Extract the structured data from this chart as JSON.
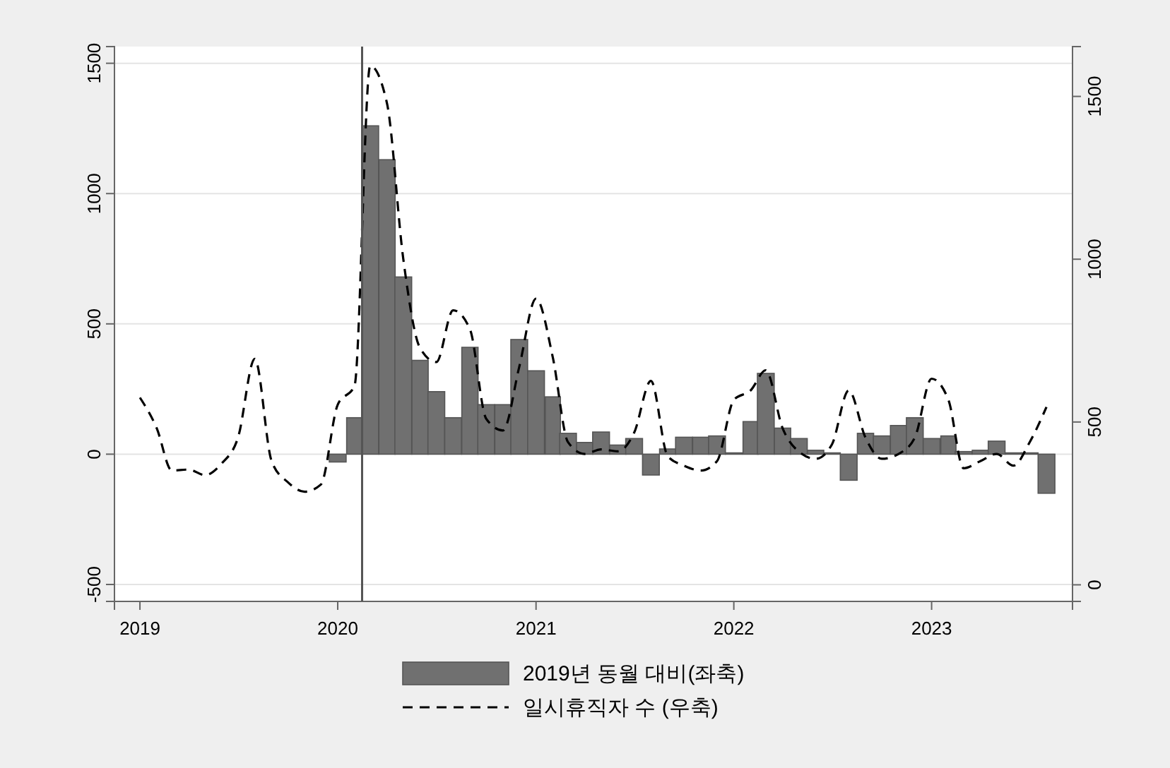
{
  "chart_data": {
    "type": "bar",
    "xlim": [
      "2018-11-15",
      "2023-09-18"
    ],
    "xticks": [
      "2019",
      "2020",
      "2021",
      "2022",
      "2023"
    ],
    "ylim": [
      -565,
      1564
    ],
    "yticks": [
      -500,
      0,
      500,
      1000,
      1500
    ],
    "y2lim": [
      -51,
      1653
    ],
    "y2ticks": [
      0,
      500,
      1000,
      1500
    ],
    "grid": "y",
    "legend": "bottom",
    "ref_lines": [
      {
        "axis": "x",
        "value": "2020-02-15",
        "color": "#555555"
      }
    ],
    "series": [
      {
        "name": "2019년 동월 대비(좌축)",
        "color": "#707070",
        "x": [
          "2020-01",
          "2020-02",
          "2020-03",
          "2020-04",
          "2020-05",
          "2020-06",
          "2020-07",
          "2020-08",
          "2020-09",
          "2020-10",
          "2020-11",
          "2020-12",
          "2021-01",
          "2021-02",
          "2021-03",
          "2021-04",
          "2021-05",
          "2021-06",
          "2021-07",
          "2021-08",
          "2021-09",
          "2021-10",
          "2021-11",
          "2021-12",
          "2022-01",
          "2022-02",
          "2022-03",
          "2022-04",
          "2022-05",
          "2022-06",
          "2022-07",
          "2022-08",
          "2022-09",
          "2022-10",
          "2022-11",
          "2022-12",
          "2023-01",
          "2023-02",
          "2023-03",
          "2023-04",
          "2023-05",
          "2023-06",
          "2023-07",
          "2023-08"
        ],
        "values": [
          -30,
          140,
          1260,
          1130,
          680,
          360,
          240,
          140,
          410,
          190,
          190,
          440,
          320,
          220,
          80,
          45,
          85,
          35,
          60,
          -80,
          20,
          65,
          65,
          70,
          5,
          125,
          310,
          100,
          60,
          15,
          5,
          -100,
          80,
          70,
          110,
          140,
          60,
          70,
          10,
          15,
          50,
          5,
          5,
          -150
        ]
      },
      {
        "name": "일시휴직자 수 (우축)",
        "type": "line",
        "axis": "y2",
        "line_style": "dashed",
        "color": "#000000",
        "x": [
          "2019-01",
          "2019-02",
          "2019-03",
          "2019-04",
          "2019-05",
          "2019-06",
          "2019-07",
          "2019-08",
          "2019-09",
          "2019-10",
          "2019-11",
          "2019-12",
          "2020-01",
          "2020-02",
          "2020-03",
          "2020-04",
          "2020-05",
          "2020-06",
          "2020-07",
          "2020-08",
          "2020-09",
          "2020-10",
          "2020-11",
          "2020-12",
          "2021-01",
          "2021-02",
          "2021-03",
          "2021-04",
          "2021-05",
          "2021-06",
          "2021-07",
          "2021-08",
          "2021-09",
          "2021-10",
          "2021-11",
          "2021-12",
          "2022-01",
          "2022-02",
          "2022-03",
          "2022-04",
          "2022-05",
          "2022-06",
          "2022-07",
          "2022-08",
          "2022-09",
          "2022-10",
          "2022-11",
          "2022-12",
          "2023-01",
          "2023-02",
          "2023-03",
          "2023-04",
          "2023-05",
          "2023-06",
          "2023-07",
          "2023-08"
        ],
        "values": [
          575,
          481,
          351,
          354,
          337,
          373,
          452,
          694,
          380,
          315,
          286,
          308,
          553,
          611,
          1594,
          1478,
          1001,
          727,
          684,
          843,
          785,
          510,
          474,
          669,
          879,
          698,
          438,
          402,
          416,
          410,
          467,
          626,
          395,
          366,
          351,
          380,
          568,
          597,
          659,
          481,
          409,
          387,
          431,
          597,
          452,
          387,
          402,
          452,
          633,
          568,
          358,
          380,
          402,
          366,
          438,
          546
        ]
      }
    ]
  }
}
